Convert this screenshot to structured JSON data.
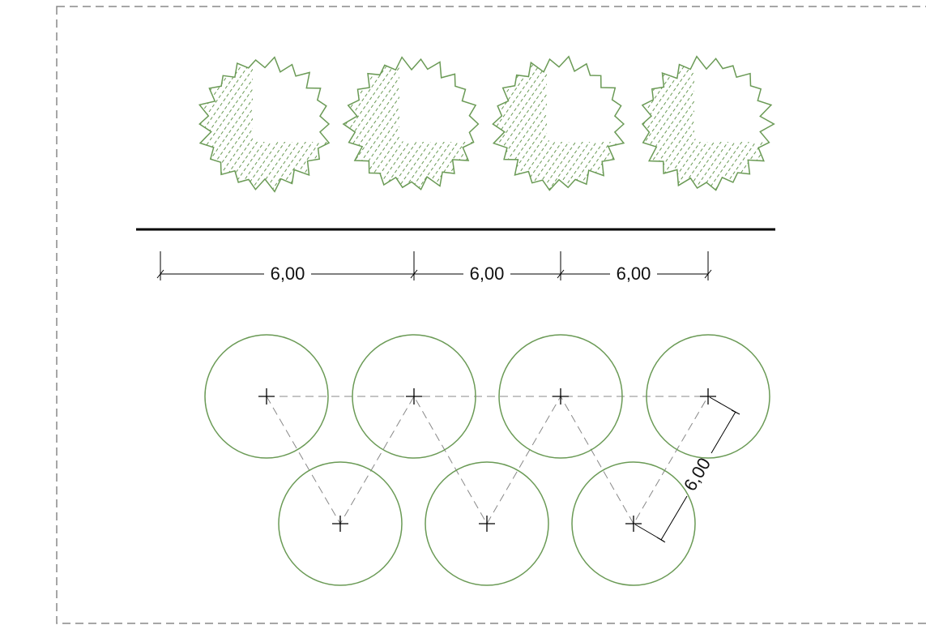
{
  "dimensions": [
    {
      "label": "6,00"
    },
    {
      "label": "6,00"
    },
    {
      "label": "6,00"
    },
    {
      "label": "6,00"
    }
  ]
}
